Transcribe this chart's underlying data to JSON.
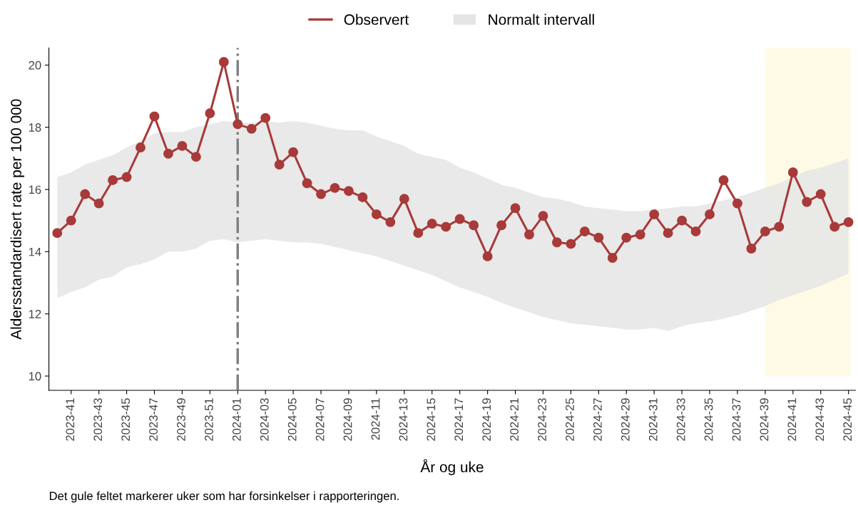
{
  "chart_data": {
    "type": "line",
    "categories": [
      null,
      "2023-41",
      null,
      "2023-43",
      null,
      "2023-45",
      null,
      "2023-47",
      null,
      "2023-49",
      null,
      "2023-51",
      null,
      "2024-01",
      null,
      "2024-03",
      null,
      "2024-05",
      null,
      "2024-07",
      null,
      "2024-09",
      null,
      "2024-11",
      null,
      "2024-13",
      null,
      "2024-15",
      null,
      "2024-17",
      null,
      "2024-19",
      null,
      "2024-21",
      null,
      "2024-23",
      null,
      "2024-25",
      null,
      "2024-27",
      null,
      "2024-29",
      null,
      "2024-31",
      null,
      "2024-33",
      null,
      "2024-35",
      null,
      "2024-37",
      null,
      "2024-39",
      null,
      "2024-41",
      null,
      "2024-43",
      null,
      "2024-45"
    ],
    "series": [
      {
        "name": "Observert",
        "color": "#a83a3a",
        "values": [
          14.6,
          15.0,
          15.85,
          15.55,
          16.3,
          16.4,
          17.35,
          18.35,
          17.15,
          17.4,
          17.05,
          18.45,
          20.1,
          18.1,
          17.95,
          18.3,
          16.8,
          17.2,
          16.2,
          15.85,
          16.05,
          15.95,
          15.75,
          15.2,
          14.95,
          15.7,
          14.6,
          14.9,
          14.8,
          15.05,
          14.85,
          13.85,
          14.85,
          15.4,
          14.55,
          15.15,
          14.3,
          14.25,
          14.65,
          14.45,
          13.8,
          14.45,
          14.55,
          15.2,
          14.6,
          15.0,
          14.65,
          15.2,
          16.3,
          15.55,
          14.1,
          14.65,
          14.8,
          16.55,
          15.6,
          15.85,
          14.8,
          14.95
        ]
      },
      {
        "name": "Normalt intervall",
        "type": "line",
        "color": "#e5e5e5",
        "values": [
          null,
          null,
          null,
          null,
          null,
          null,
          null,
          null,
          null,
          null,
          null,
          null,
          null,
          null,
          null,
          null,
          null,
          null,
          null,
          null,
          null,
          null,
          null,
          null,
          null,
          null,
          null,
          null,
          null,
          null,
          null,
          null,
          null,
          null,
          null,
          null,
          null,
          null,
          null,
          null,
          null,
          null,
          null,
          null,
          null,
          null,
          null,
          null,
          null,
          null,
          null,
          null,
          null,
          null,
          null,
          null,
          null,
          null
        ],
        "lower": [
          12.5,
          12.7,
          12.85,
          13.1,
          13.2,
          13.5,
          13.6,
          13.75,
          14.0,
          14.0,
          14.1,
          14.35,
          14.4,
          14.3,
          14.35,
          14.4,
          14.35,
          14.3,
          14.3,
          14.25,
          14.15,
          14.05,
          13.95,
          13.85,
          13.7,
          13.55,
          13.4,
          13.25,
          13.05,
          12.85,
          12.7,
          12.55,
          12.35,
          12.2,
          12.05,
          11.9,
          11.8,
          11.7,
          11.65,
          11.6,
          11.55,
          11.5,
          11.5,
          11.55,
          11.45,
          11.6,
          11.7,
          11.75,
          11.85,
          11.95,
          12.1,
          12.25,
          12.45,
          12.6,
          12.75,
          12.9,
          13.1,
          13.3
        ],
        "upper": [
          16.4,
          16.55,
          16.8,
          16.95,
          17.1,
          17.35,
          17.55,
          17.8,
          17.85,
          17.85,
          18.0,
          18.1,
          18.2,
          18.15,
          18.15,
          18.2,
          18.15,
          18.2,
          18.15,
          18.05,
          17.95,
          17.9,
          17.9,
          17.7,
          17.55,
          17.4,
          17.15,
          17.05,
          16.95,
          16.7,
          16.55,
          16.35,
          16.15,
          16.05,
          15.9,
          15.75,
          15.7,
          15.6,
          15.45,
          15.4,
          15.35,
          15.3,
          15.3,
          15.35,
          15.4,
          15.45,
          15.45,
          15.55,
          15.65,
          15.75,
          15.9,
          16.05,
          16.2,
          16.4,
          16.6,
          16.7,
          16.85,
          17.0
        ]
      }
    ],
    "xlabel": "År og uke",
    "ylabel": "Aldersstandardisert rate per 100 000",
    "annotations": [
      "Det gule feltet markerer uker som har forsinkelser i rapporteringen."
    ],
    "ylim": [
      9.54,
      20.55
    ],
    "yticks": [
      10,
      12,
      14,
      16,
      18,
      20
    ],
    "ref_lines": [
      {
        "axis": "x",
        "value": "2024-01",
        "color": "#808080",
        "line_style": "dashdot"
      }
    ],
    "bands": [
      {
        "axis": "x",
        "from": "2024-39",
        "to": "2024-45",
        "color": "#fdf8dc"
      }
    ],
    "marker": "circle",
    "grid": false,
    "legend": "top"
  }
}
